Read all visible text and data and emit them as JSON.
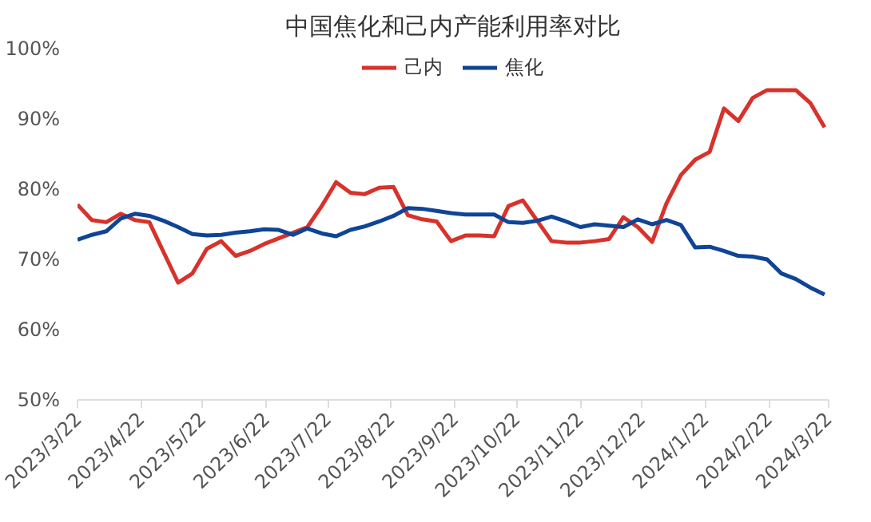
{
  "chart_data": {
    "type": "line",
    "title": "中国焦化和己内产能利用率对比",
    "x": [
      "2023-03-22",
      "2023-03-29",
      "2023-04-05",
      "2023-04-12",
      "2023-04-19",
      "2023-04-26",
      "2023-05-03",
      "2023-05-10",
      "2023-05-17",
      "2023-05-24",
      "2023-05-31",
      "2023-06-07",
      "2023-06-14",
      "2023-06-21",
      "2023-06-28",
      "2023-07-05",
      "2023-07-12",
      "2023-07-19",
      "2023-07-26",
      "2023-08-02",
      "2023-08-09",
      "2023-08-16",
      "2023-08-23",
      "2023-08-30",
      "2023-09-06",
      "2023-09-13",
      "2023-09-20",
      "2023-09-27",
      "2023-10-04",
      "2023-10-11",
      "2023-10-18",
      "2023-10-25",
      "2023-11-01",
      "2023-11-08",
      "2023-11-15",
      "2023-11-22",
      "2023-11-29",
      "2023-12-06",
      "2023-12-13",
      "2023-12-20",
      "2023-12-27",
      "2024-01-03",
      "2024-01-10",
      "2024-01-17",
      "2024-01-24",
      "2024-01-31",
      "2024-02-07",
      "2024-02-14",
      "2024-02-21",
      "2024-02-28",
      "2024-03-06",
      "2024-03-13",
      "2024-03-20"
    ],
    "series": [
      {
        "name": "己内",
        "color": "#d7322b",
        "values": [
          77.8,
          75.6,
          75.3,
          76.5,
          75.6,
          75.3,
          71.0,
          66.7,
          68.0,
          71.5,
          72.6,
          70.5,
          71.2,
          72.2,
          73.0,
          73.8,
          74.6,
          77.6,
          81.0,
          79.5,
          79.3,
          80.2,
          80.3,
          76.3,
          75.7,
          75.4,
          72.6,
          73.4,
          73.4,
          73.3,
          77.6,
          78.4,
          75.5,
          72.6,
          72.4,
          72.4,
          72.6,
          72.9,
          76.0,
          74.6,
          72.5,
          78.0,
          82.0,
          84.2,
          85.3,
          91.5,
          89.7,
          93.0,
          94.1,
          94.1,
          94.1,
          92.3,
          88.8
        ]
      },
      {
        "name": "焦化",
        "color": "#0f4496",
        "values": [
          72.8,
          73.5,
          74.0,
          75.8,
          76.5,
          76.2,
          75.5,
          74.6,
          73.6,
          73.4,
          73.5,
          73.8,
          74.0,
          74.3,
          74.2,
          73.5,
          74.4,
          73.7,
          73.3,
          74.2,
          74.7,
          75.4,
          76.2,
          77.3,
          77.2,
          76.9,
          76.6,
          76.4,
          76.4,
          76.4,
          75.3,
          75.2,
          75.5,
          76.1,
          75.4,
          74.6,
          75.0,
          74.8,
          74.6,
          75.7,
          75.0,
          75.6,
          74.9,
          71.7,
          71.8,
          71.2,
          70.5,
          70.4,
          70.0,
          68.0,
          67.2,
          66.0,
          65.0
        ]
      }
    ],
    "xlim": [
      "2023-03-22",
      "2024-03-22"
    ],
    "xticks": [
      {
        "value": "2023-03-22",
        "label": "2023/3/22"
      },
      {
        "value": "2023-04-22",
        "label": "2023/4/22"
      },
      {
        "value": "2023-05-22",
        "label": "2023/5/22"
      },
      {
        "value": "2023-06-22",
        "label": "2023/6/22"
      },
      {
        "value": "2023-07-22",
        "label": "2023/7/22"
      },
      {
        "value": "2023-08-22",
        "label": "2023/8/22"
      },
      {
        "value": "2023-09-22",
        "label": "2023/9/22"
      },
      {
        "value": "2023-10-22",
        "label": "2023/10/22"
      },
      {
        "value": "2023-11-22",
        "label": "2023/11/22"
      },
      {
        "value": "2023-12-22",
        "label": "2023/12/22"
      },
      {
        "value": "2024-01-22",
        "label": "2024/1/22"
      },
      {
        "value": "2024-02-22",
        "label": "2024/2/22"
      },
      {
        "value": "2024-03-22",
        "label": "2024/3/22"
      }
    ],
    "ylim": [
      50,
      100
    ],
    "yticks": [
      {
        "value": 50,
        "label": "50%"
      },
      {
        "value": 60,
        "label": "60%"
      },
      {
        "value": 70,
        "label": "70%"
      },
      {
        "value": 80,
        "label": "80%"
      },
      {
        "value": 90,
        "label": "90%"
      },
      {
        "value": 100,
        "label": "100%"
      }
    ],
    "grid": false,
    "legend": "top",
    "marker": "none",
    "line_style": "solid"
  }
}
